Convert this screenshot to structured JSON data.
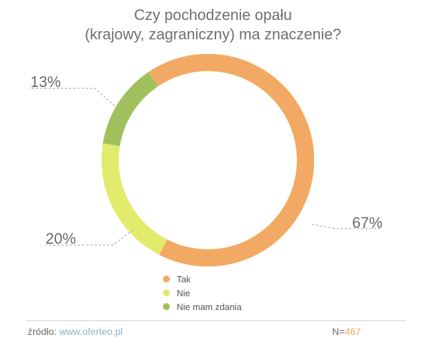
{
  "title_line1": "Czy pochodzenie opału",
  "title_line2": "(krajowy, zagraniczny) ma znaczenie?",
  "chart_data": {
    "type": "pie",
    "title": "Czy pochodzenie opału (krajowy, zagraniczny) ma znaczenie?",
    "categories": [
      "Tak",
      "Nie",
      "Nie mam zdania"
    ],
    "values": [
      67,
      20,
      13
    ],
    "labels": [
      "67%",
      "20%",
      "13%"
    ],
    "colors": [
      "#f2a964",
      "#e2eb6c",
      "#a0c05e"
    ],
    "legend_position": "bottom"
  },
  "legend": [
    {
      "label": "Tak",
      "color": "#f2a964"
    },
    {
      "label": "Nie",
      "color": "#e2eb6c"
    },
    {
      "label": "Nie mam zdania",
      "color": "#a0c05e"
    }
  ],
  "footer": {
    "source_label": "źródło:",
    "source_link": "www.oferteo.pl",
    "n_label": "N=",
    "n_value": "467"
  }
}
